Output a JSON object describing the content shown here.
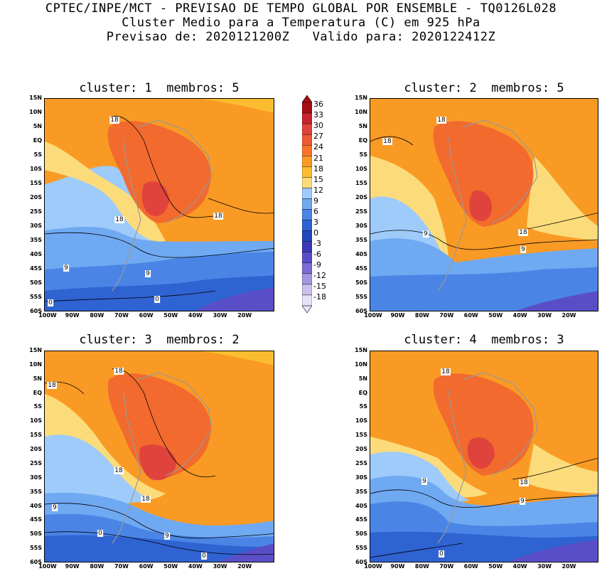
{
  "header": {
    "line1": "CPTEC/INPE/MCT - PREVISAO DE TEMPO GLOBAL POR ENSEMBLE - TQ0126L028",
    "line2": "Cluster Medio para a Temperatura (C) em 925 hPa",
    "line3": "Previsao de: 2020121200Z   Valido para: 2020122412Z"
  },
  "panels": [
    {
      "title": "cluster: 1  membros: 5"
    },
    {
      "title": "cluster: 2  membros: 5"
    },
    {
      "title": "cluster: 3  membros: 2"
    },
    {
      "title": "cluster: 4  membros: 3"
    }
  ],
  "lat_labels": [
    "15N",
    "10N",
    "5N",
    "EQ",
    "5S",
    "10S",
    "15S",
    "20S",
    "25S",
    "30S",
    "35S",
    "40S",
    "45S",
    "50S",
    "55S",
    "60S"
  ],
  "lon_labels": [
    "100W",
    "90W",
    "80W",
    "70W",
    "60W",
    "50W",
    "40W",
    "30W",
    "20W"
  ],
  "colorbar": {
    "levels": [
      "36",
      "33",
      "30",
      "27",
      "24",
      "21",
      "18",
      "15",
      "12",
      "9",
      "6",
      "3",
      "0",
      "-3",
      "-6",
      "-9",
      "-12",
      "-15",
      "-18"
    ],
    "colors": [
      "#a50f15",
      "#c7252b",
      "#e0433c",
      "#ee5a2f",
      "#f7742a",
      "#f99a25",
      "#fbbd2f",
      "#fcdc7a",
      "#9ecbfa",
      "#6fa9f2",
      "#4a85e6",
      "#2f63d2",
      "#2448bd",
      "#3b39b8",
      "#5a4ec8",
      "#7b6cd6",
      "#a496e2",
      "#cbc0ee",
      "#e7e1f7"
    ]
  },
  "colors": {
    "warm_core": "#f26a2e",
    "hot_core": "#e0433c",
    "orange": "#f99a25",
    "light_orange": "#fbbd2f",
    "yellow": "#fcdc7a",
    "light_blue": "#9ecbfa",
    "mid_blue": "#6fa9f2",
    "blue": "#4a85e6",
    "deep_blue": "#2f63d2",
    "purple": "#5a4ec8"
  },
  "contour_labels": {
    "p1": [
      "18",
      "18",
      "18",
      "9",
      "9",
      "0",
      "0"
    ],
    "p2": [
      "18",
      "18",
      "18",
      "9",
      "9"
    ],
    "p3": [
      "18",
      "18",
      "18",
      "18",
      "9",
      "9",
      "0",
      "0"
    ],
    "p4": [
      "18",
      "18",
      "9",
      "9",
      "0"
    ]
  }
}
